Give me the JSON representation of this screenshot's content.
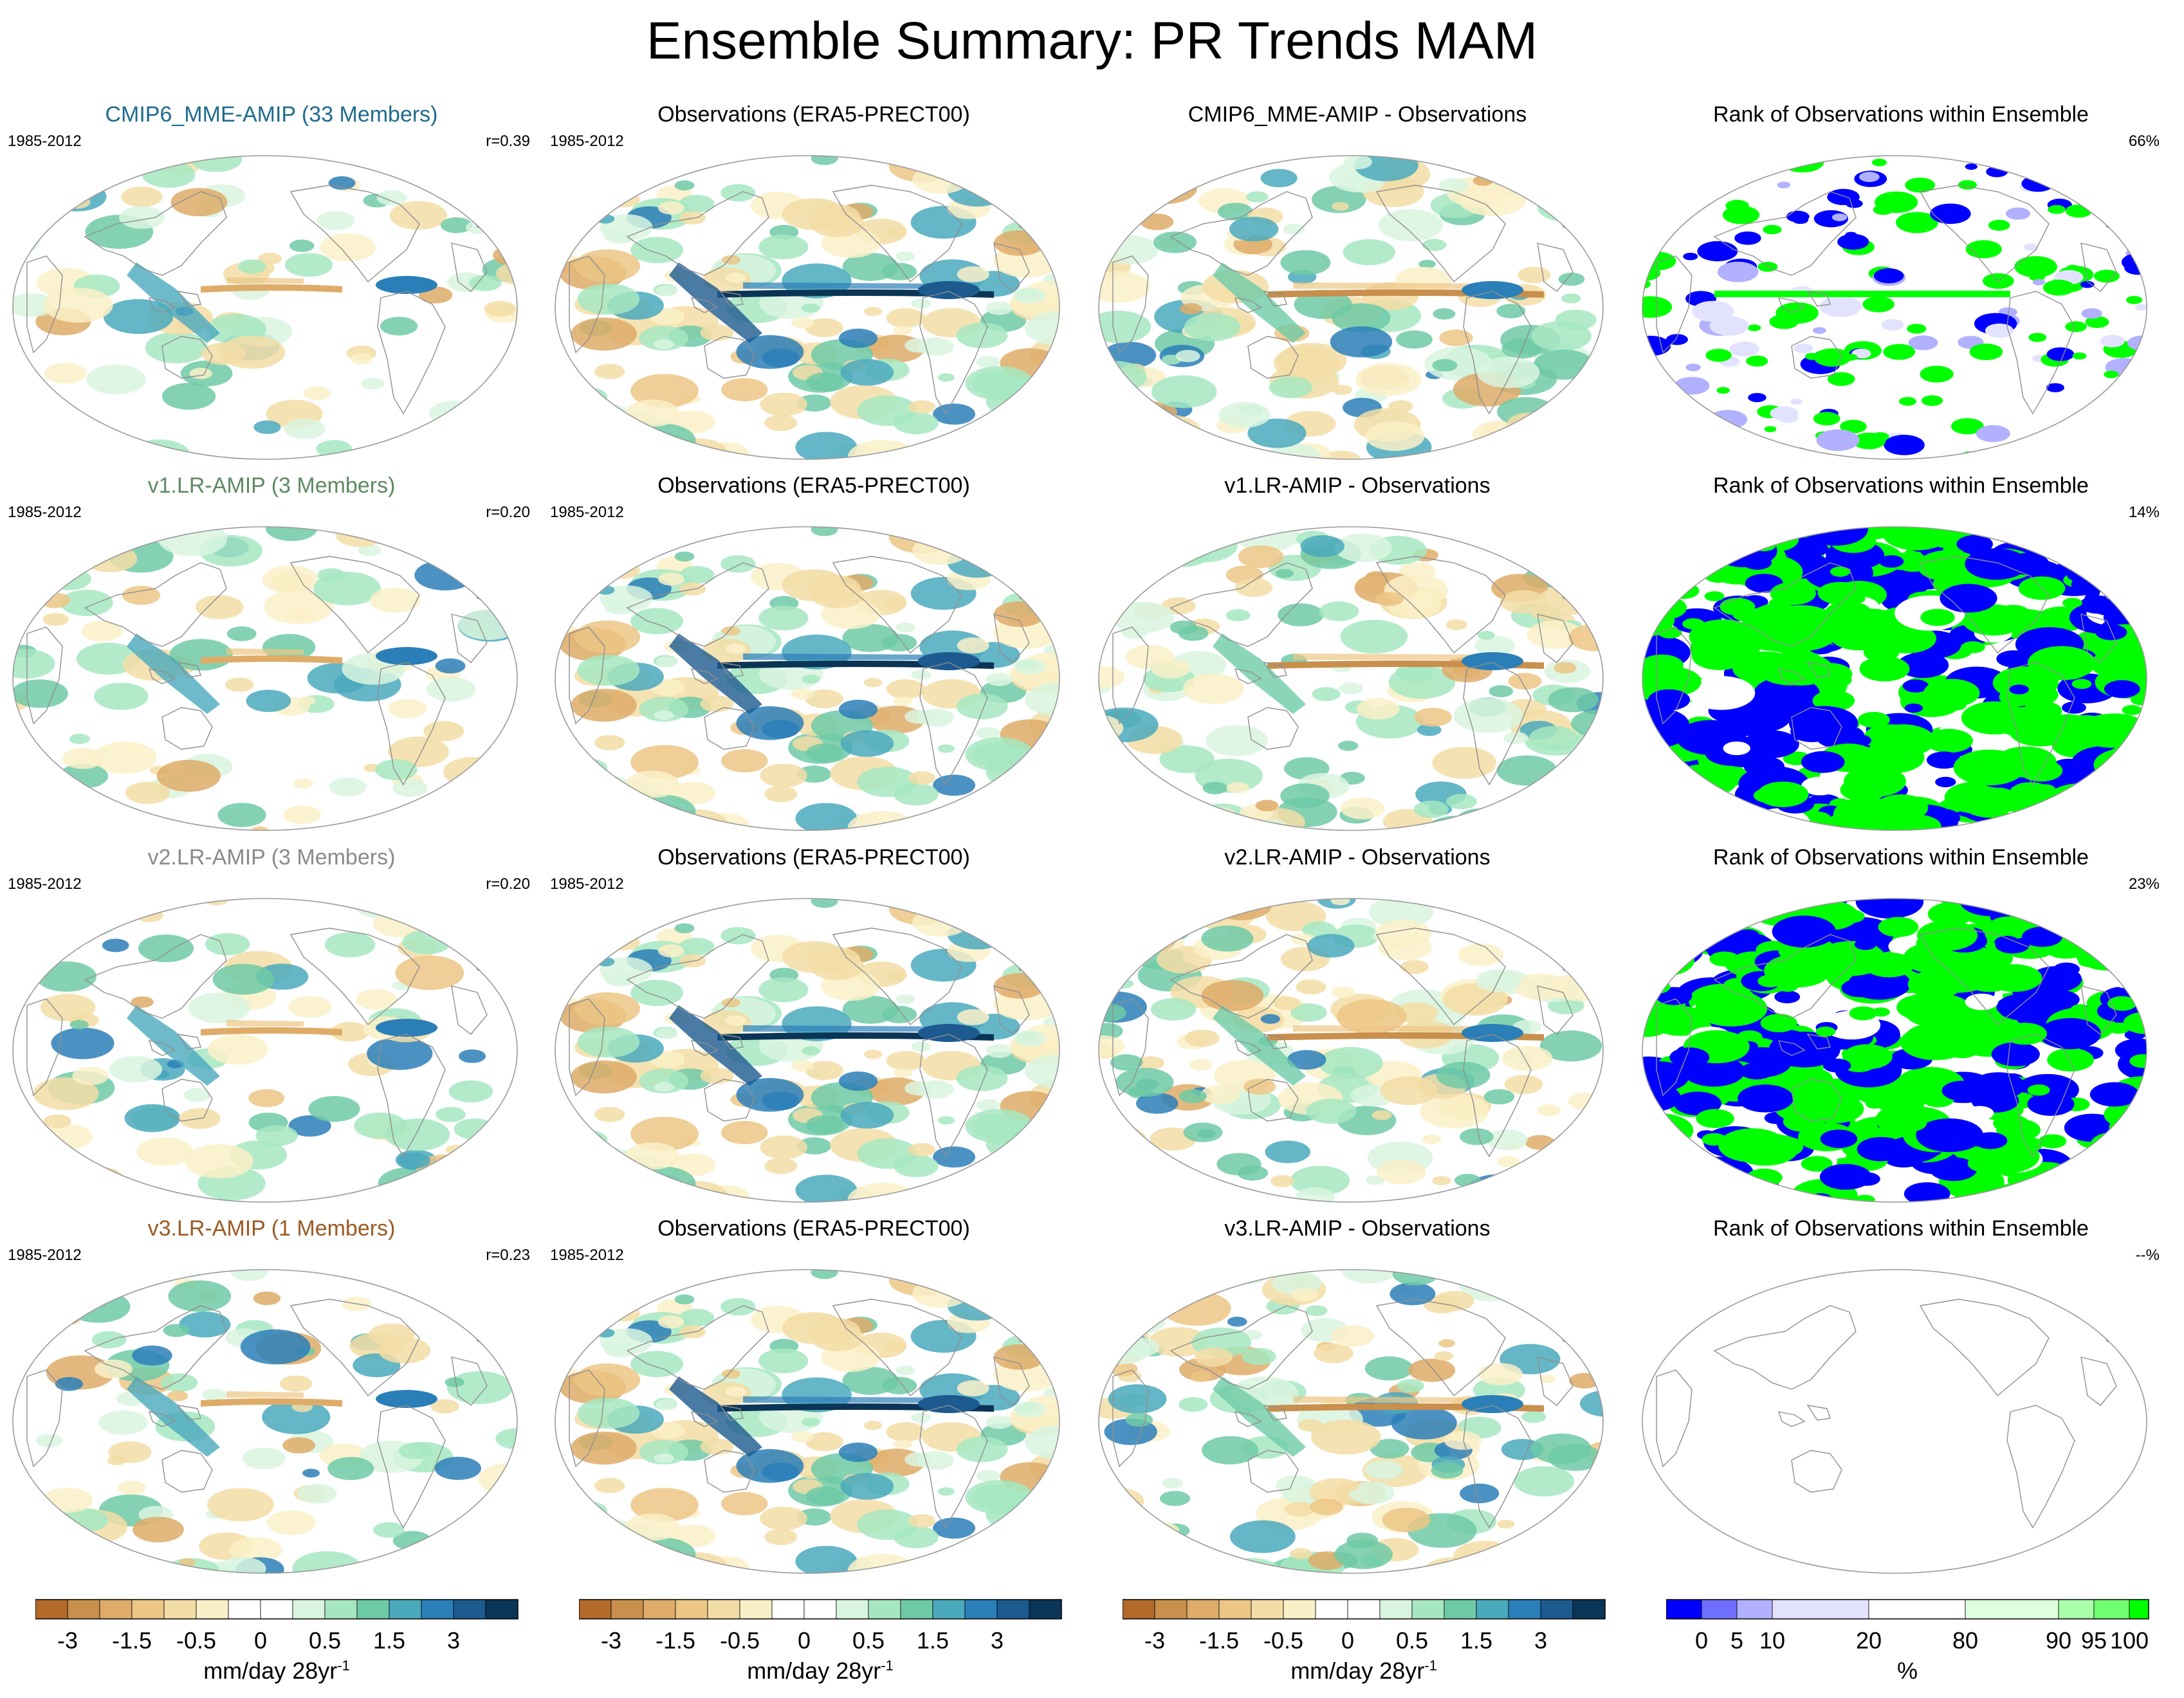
{
  "title": "Ensemble Summary: PR Trends MAM",
  "rows": [
    {
      "model_label": "CMIP6_MME-AMIP (33 Members)",
      "model_color": "#1f6b8c",
      "period": "1985-2012",
      "corr": "r=0.39",
      "obs_label": "Observations (ERA5-PRECT00)",
      "obs_period": "1985-2012",
      "diff_label": "CMIP6_MME-AMIP - Observations",
      "rank_label": "Rank of Observations within Ensemble",
      "rank_pct": "66%",
      "rank_style": "sparse"
    },
    {
      "model_label": "v1.LR-AMIP (3 Members)",
      "model_color": "#5e8a63",
      "period": "1985-2012",
      "corr": "r=0.20",
      "obs_label": "Observations (ERA5-PRECT00)",
      "obs_period": "1985-2012",
      "diff_label": "v1.LR-AMIP - Observations",
      "rank_label": "Rank of Observations within Ensemble",
      "rank_pct": "14%",
      "rank_style": "dense"
    },
    {
      "model_label": "v2.LR-AMIP (3 Members)",
      "model_color": "#8a8a8a",
      "period": "1985-2012",
      "corr": "r=0.20",
      "obs_label": "Observations (ERA5-PRECT00)",
      "obs_period": "1985-2012",
      "diff_label": "v2.LR-AMIP - Observations",
      "rank_label": "Rank of Observations within Ensemble",
      "rank_pct": "23%",
      "rank_style": "dense"
    },
    {
      "model_label": "v3.LR-AMIP (1 Members)",
      "model_color": "#9a5a22",
      "period": "1985-2012",
      "corr": "r=0.23",
      "obs_label": "Observations (ERA5-PRECT00)",
      "obs_period": "1985-2012",
      "diff_label": "v3.LR-AMIP - Observations",
      "rank_label": "Rank of Observations within Ensemble",
      "rank_pct": "--%",
      "rank_style": "empty"
    }
  ],
  "chart_data": {
    "type": "heatmap",
    "projection": "Robinson (global, Pacific-centered)",
    "variable": "PR",
    "season": "MAM",
    "trend_colorbar": {
      "unit_text": "mm/day 28yr",
      "unit_exponent": "-1",
      "tick_labels": [
        "-3",
        "-1.5",
        "-0.5",
        "0",
        "0.5",
        "1.5",
        "3"
      ],
      "colors": [
        "#b2692a",
        "#c98f4d",
        "#deac68",
        "#ecc685",
        "#f3dda6",
        "#faf0c8",
        "#ffffff",
        "#ffffff",
        "#d9f5df",
        "#a6e7c1",
        "#6ecaa6",
        "#4aa9bd",
        "#2b7fb8",
        "#1c5a8f",
        "#0b3556"
      ]
    },
    "rank_colorbar": {
      "unit_text": "%",
      "tick_labels": [
        "0",
        "5",
        "10",
        "20",
        "80",
        "90",
        "95",
        "100"
      ],
      "colors": [
        "#0000ff",
        "#6e6eff",
        "#b1b1ff",
        "#e2e2ff",
        "#ffffff",
        "#ddffdd",
        "#aaffaa",
        "#70ff70",
        "#00ff00"
      ]
    }
  }
}
